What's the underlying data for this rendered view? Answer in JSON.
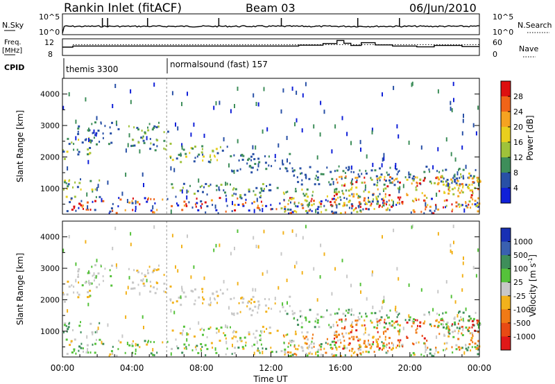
{
  "header": {
    "title": "Rankin Inlet (fitACF)",
    "beam": "Beam 03",
    "date": "06/Jun/2010"
  },
  "nsky_panel": {
    "left_label": "N.Sky",
    "right_label": "N.Search",
    "left_ticks": [
      "10^5",
      "10^0"
    ],
    "right_ticks": [
      "10^5",
      "10^0"
    ]
  },
  "freq_panel": {
    "left_label_1": "Freq.",
    "left_label_2": "[MHz]",
    "right_label": "Nave",
    "left_ticks": [
      "12",
      "8"
    ],
    "right_ticks": [
      "60",
      "0"
    ],
    "freq_steps": [
      {
        "x": 0.0,
        "y": 11.0
      },
      {
        "x": 0.6,
        "y": 11.0
      },
      {
        "x": 0.6,
        "y": 11.4
      },
      {
        "x": 13.6,
        "y": 11.4
      },
      {
        "x": 13.6,
        "y": 11.7
      },
      {
        "x": 15.0,
        "y": 11.7
      },
      {
        "x": 15.0,
        "y": 12.3
      },
      {
        "x": 15.8,
        "y": 12.3
      },
      {
        "x": 15.8,
        "y": 13.4
      },
      {
        "x": 16.2,
        "y": 13.4
      },
      {
        "x": 16.2,
        "y": 12.4
      },
      {
        "x": 16.6,
        "y": 12.4
      },
      {
        "x": 16.6,
        "y": 11.6
      },
      {
        "x": 17.2,
        "y": 11.6
      },
      {
        "x": 17.2,
        "y": 12.6
      },
      {
        "x": 18.0,
        "y": 12.6
      },
      {
        "x": 18.0,
        "y": 11.8
      },
      {
        "x": 19.0,
        "y": 11.8
      },
      {
        "x": 19.0,
        "y": 11.4
      },
      {
        "x": 20.4,
        "y": 11.4
      },
      {
        "x": 20.4,
        "y": 11.1
      },
      {
        "x": 21.4,
        "y": 11.1
      },
      {
        "x": 21.4,
        "y": 11.6
      },
      {
        "x": 23.0,
        "y": 11.6
      },
      {
        "x": 23.0,
        "y": 11.2
      },
      {
        "x": 24.0,
        "y": 11.2
      }
    ],
    "nave_dotted_level": 11.9
  },
  "cpid": {
    "label": "CPID",
    "segments": [
      {
        "name": "themis 3300",
        "start": 0.0
      },
      {
        "name": "normalsound (fast) 157",
        "start": 6.0
      }
    ]
  },
  "chart_data": [
    {
      "type": "heatmap",
      "ylabel": "Slant Range [km]",
      "ylim": [
        180,
        4500
      ],
      "yticks": [
        1000,
        2000,
        3000,
        4000
      ],
      "xlim": [
        0,
        24
      ],
      "colorbar": {
        "label": "Power [dB]",
        "ticks": [
          "28",
          "24",
          "20",
          "16",
          "12",
          "8",
          "4"
        ],
        "colors": [
          "#dd1010",
          "#f06418",
          "#f5a321",
          "#e8cf1e",
          "#9fc23a",
          "#3e8e5a",
          "#2850a6",
          "#1020d8"
        ]
      }
    },
    {
      "type": "heatmap",
      "ylabel": "Slant Range [km]",
      "ylim": [
        180,
        4500
      ],
      "yticks": [
        1000,
        2000,
        3000,
        4000
      ],
      "xlim": [
        0,
        24
      ],
      "xticks": [
        "00:00",
        "04:00",
        "08:00",
        "12:00",
        "16:00",
        "20:00",
        "00:00"
      ],
      "xlabel": "Time UT",
      "colorbar": {
        "label": "Velocity [m s-1]",
        "ticks": [
          "1000",
          "500",
          "100",
          "25",
          "-25",
          "-100",
          "-500",
          "-1000"
        ],
        "colors": [
          "#1830b4",
          "#3a60b0",
          "#3e8e5a",
          "#55c23a",
          "#c8c8c8",
          "#f2b21c",
          "#f07a16",
          "#e84a14",
          "#e01818"
        ]
      }
    }
  ]
}
